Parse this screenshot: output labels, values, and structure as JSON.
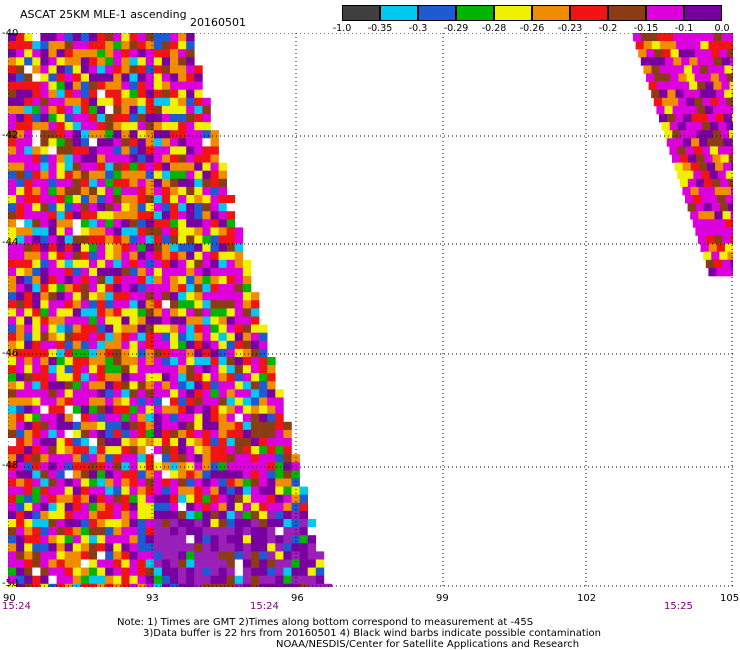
{
  "header": {
    "title": "ASCAT 25KM MLE-1 ascending",
    "date": "20160501"
  },
  "colorbar": {
    "swatches": [
      "#404040",
      "#00c8f0",
      "#1e5ad2",
      "#00b400",
      "#f0f000",
      "#f08c00",
      "#f01414",
      "#8c3c14",
      "#dc00dc",
      "#7800a0"
    ],
    "labels": [
      "-1.0",
      "-0.35",
      "-0.3",
      "-0.29",
      "-0.28",
      "-0.26",
      "-0.23",
      "-0.2",
      "-0.15",
      "-0.1",
      "0.0"
    ]
  },
  "map": {
    "lat_labels": [
      "-40",
      "-42",
      "-44",
      "-46",
      "-48",
      "-50"
    ],
    "lon_labels": [
      "90",
      "93",
      "96",
      "99",
      "102",
      "105"
    ],
    "lat_range": [
      -50,
      -40
    ],
    "lon_range": [
      90,
      105
    ],
    "pass_times": [
      "15:24",
      "15:24",
      "15:25"
    ]
  },
  "notes": {
    "line1": "Note: 1) Times are GMT 2)Times along bottom correspond to measurement at -45S",
    "line2": "3)Data buffer is 22 hrs from 20160501 4) Black wind barbs indicate possible contamination",
    "line3": "NOAA/NESDIS/Center for Satellite Applications and Research"
  }
}
